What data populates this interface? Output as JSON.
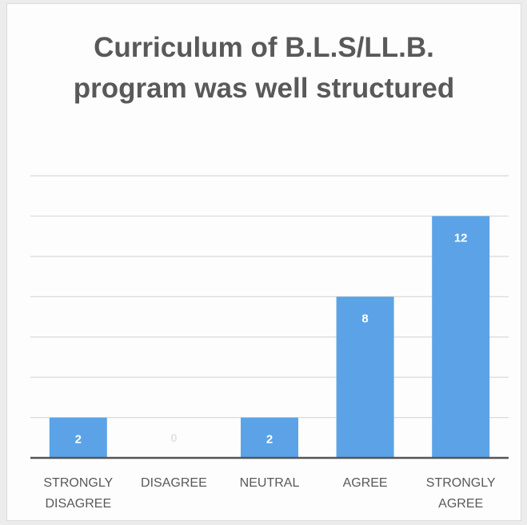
{
  "chart_data": {
    "type": "bar",
    "title": "Curriculum of B.L.S/LL.B. program was well structured",
    "categories": [
      "STRONGLY DISAGREE",
      "DISAGREE",
      "NEUTRAL",
      "AGREE",
      "STRONGLY AGREE"
    ],
    "values": [
      2,
      0,
      2,
      8,
      12
    ],
    "color": "#5ba3e6",
    "ylim": [
      0,
      14
    ],
    "yticks": [
      0,
      2,
      4,
      6,
      8,
      10,
      12,
      14
    ],
    "grid": true
  }
}
